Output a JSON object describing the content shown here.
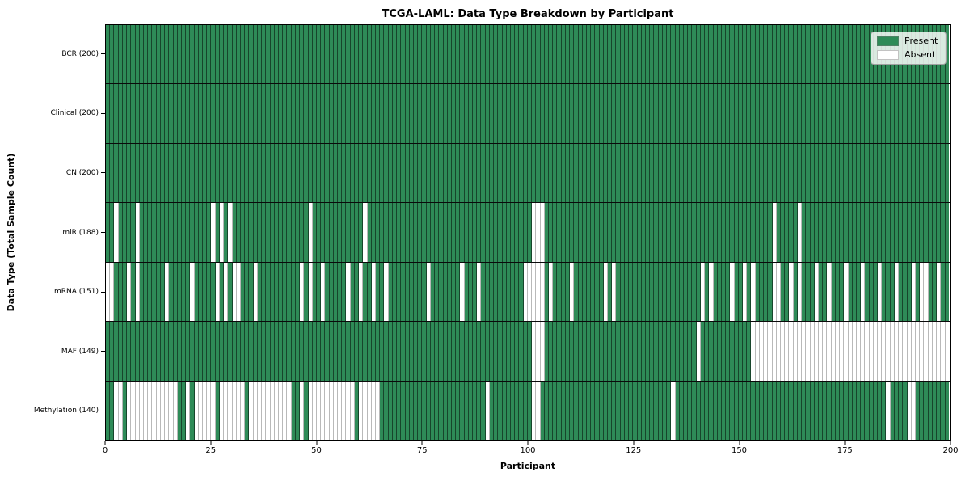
{
  "title": "TCGA-LAML: Data Type Breakdown by Participant",
  "x_axis": {
    "label": "Participant",
    "ticks": [
      0,
      25,
      50,
      75,
      100,
      125,
      150,
      175,
      200
    ],
    "range": [
      0,
      200
    ]
  },
  "y_axis": {
    "label": "Data Type (Total Sample Count)"
  },
  "legend": {
    "entries": [
      {
        "label": "Present",
        "color": "#2e8b57"
      },
      {
        "label": "Absent",
        "color": "#ffffff"
      }
    ],
    "position": "upper right"
  },
  "colors": {
    "present": "#2e8b57",
    "absent": "#ffffff",
    "grid_line_on_present": "rgba(0,0,0,0.5)",
    "grid_line_on_absent": "#b9b9b9",
    "row_separator": "#0a0a0a",
    "plot_border": "#000000",
    "background": "#ffffff"
  },
  "chart_data": {
    "type": "heatmap",
    "title": "TCGA-LAML: Data Type Breakdown by Participant",
    "xlabel": "Participant",
    "ylabel": "Data Type (Total Sample Count)",
    "n_participants": 200,
    "xlim": [
      0,
      200
    ],
    "x_ticks": [
      0,
      25,
      50,
      75,
      100,
      125,
      150,
      175,
      200
    ],
    "legend_entries": [
      "Present",
      "Absent"
    ],
    "grid": false,
    "rows": [
      {
        "label": "BCR (200)",
        "data_type": "BCR",
        "present_count": 200,
        "absent_participants": []
      },
      {
        "label": "Clinical (200)",
        "data_type": "Clinical",
        "present_count": 200,
        "absent_participants": []
      },
      {
        "label": "CN (200)",
        "data_type": "CN",
        "present_count": 200,
        "absent_participants": []
      },
      {
        "label": "miR (188)",
        "data_type": "miR",
        "present_count": 188,
        "absent_participants": [
          2,
          7,
          25,
          27,
          29,
          48,
          61,
          101,
          102,
          103,
          158,
          164
        ]
      },
      {
        "label": "mRNA (151)",
        "data_type": "mRNA",
        "present_count": 151,
        "absent_participants": [
          0,
          1,
          5,
          7,
          14,
          20,
          26,
          28,
          30,
          31,
          35,
          46,
          48,
          51,
          57,
          60,
          63,
          66,
          76,
          84,
          88,
          99,
          100,
          101,
          102,
          103,
          105,
          110,
          118,
          120,
          141,
          143,
          148,
          151,
          153,
          158,
          159,
          162,
          164,
          168,
          171,
          175,
          179,
          183,
          187,
          191,
          193,
          194,
          197
        ]
      },
      {
        "label": "MAF (149)",
        "data_type": "MAF",
        "present_count": 149,
        "absent_participants": [
          101,
          102,
          103,
          140,
          153,
          154,
          155,
          156,
          157,
          158,
          159,
          160,
          161,
          162,
          163,
          164,
          165,
          166,
          167,
          168,
          169,
          170,
          171,
          172,
          173,
          174,
          175,
          176,
          177,
          178,
          179,
          180,
          181,
          182,
          183,
          184,
          185,
          186,
          187,
          188,
          189,
          190,
          191,
          192,
          193,
          194,
          195,
          196,
          197,
          198,
          199
        ]
      },
      {
        "label": "Methylation (140)",
        "data_type": "Methylation",
        "present_count": 140,
        "absent_participants": [
          2,
          3,
          5,
          6,
          7,
          8,
          9,
          10,
          11,
          12,
          13,
          14,
          15,
          16,
          19,
          21,
          22,
          23,
          24,
          25,
          27,
          28,
          29,
          30,
          31,
          32,
          34,
          35,
          36,
          37,
          38,
          39,
          40,
          41,
          42,
          43,
          46,
          48,
          49,
          50,
          51,
          52,
          53,
          54,
          55,
          56,
          57,
          58,
          60,
          61,
          62,
          63,
          64,
          90,
          101,
          102,
          134,
          185,
          190,
          191
        ]
      }
    ]
  }
}
